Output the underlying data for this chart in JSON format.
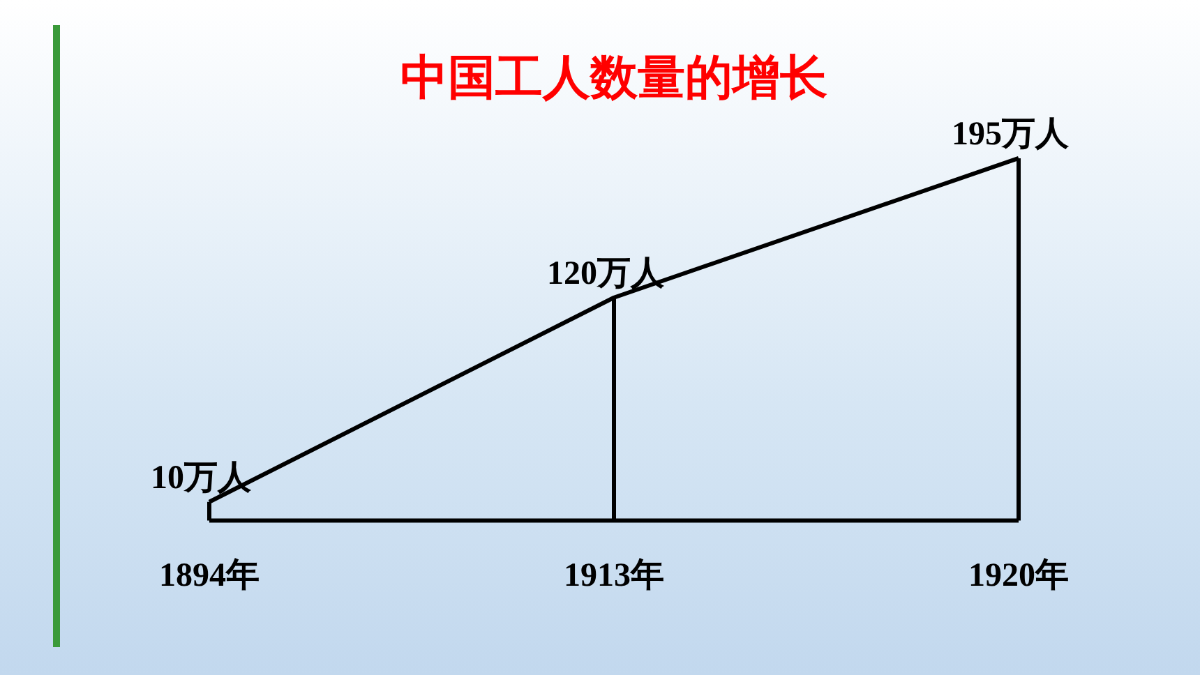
{
  "chart_data": {
    "type": "line",
    "title": "中国工人数量的增长",
    "categories": [
      "1894年",
      "1913年",
      "1920年"
    ],
    "values": [
      10,
      120,
      195
    ],
    "value_labels": [
      "10万人",
      "120万人",
      "195万人"
    ],
    "color": "#000000",
    "grid": "x",
    "legend": false
  }
}
